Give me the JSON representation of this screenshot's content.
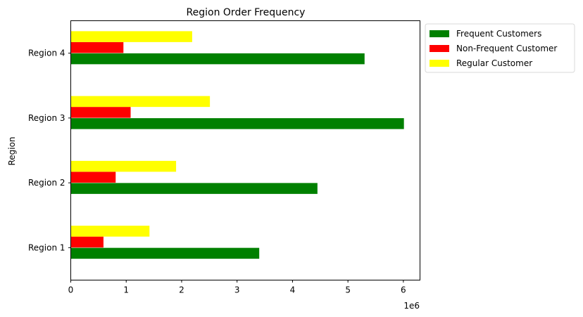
{
  "chart_data": {
    "type": "bar",
    "orientation": "horizontal",
    "title": "Region Order Frequency",
    "xlabel": "",
    "ylabel": "Region",
    "x_offset_label": "1e6",
    "x_scale": 1000000,
    "xlim": [
      0,
      6300000
    ],
    "x_ticks": [
      0,
      1,
      2,
      3,
      4,
      5,
      6
    ],
    "categories": [
      "Region 1",
      "Region 2",
      "Region 3",
      "Region 4"
    ],
    "series": [
      {
        "name": "Frequent Customers",
        "color": "#008000",
        "values": [
          3400000,
          4450000,
          6010000,
          5300000
        ]
      },
      {
        "name": "Non-Frequent Customer",
        "color": "#ff0000",
        "values": [
          590000,
          810000,
          1080000,
          950000
        ]
      },
      {
        "name": "Regular Customer",
        "color": "#ffff00",
        "values": [
          1420000,
          1900000,
          2510000,
          2190000
        ]
      }
    ],
    "grid": false,
    "legend_position": "outside-top-right"
  }
}
